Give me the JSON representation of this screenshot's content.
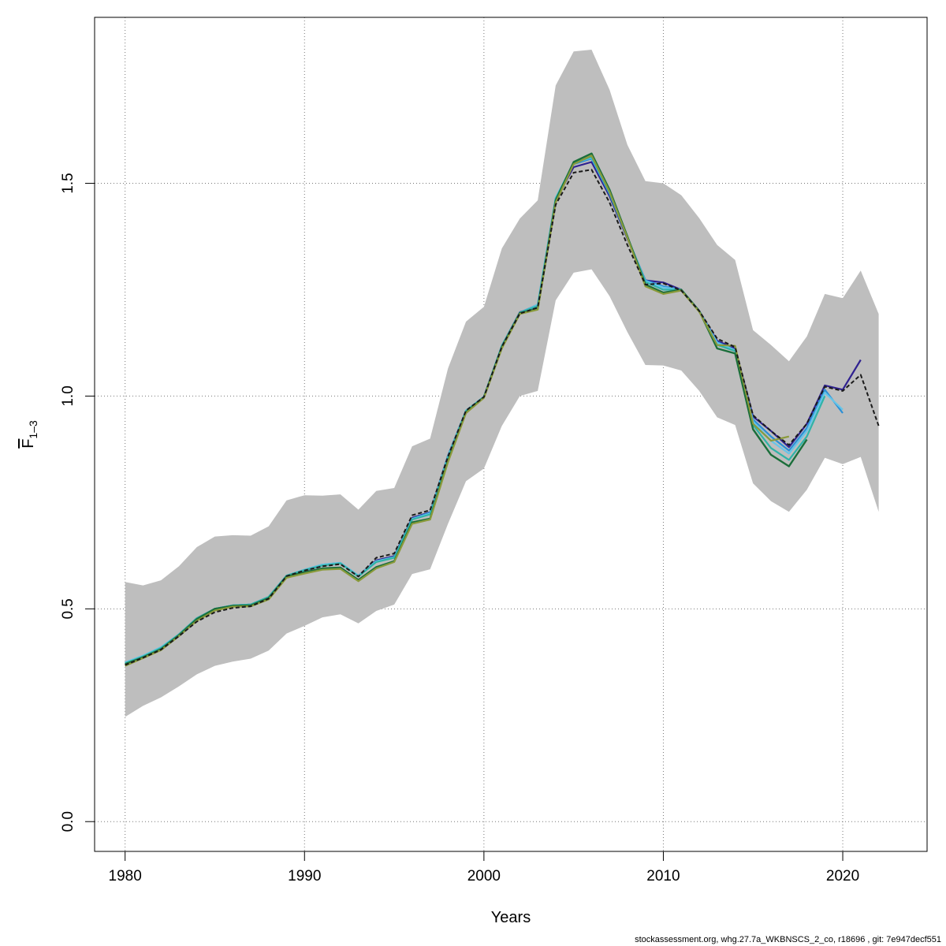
{
  "chart_data": {
    "type": "line",
    "title": "",
    "xlabel": "Years",
    "ylabel_main": "F",
    "ylabel_sub": "1–3",
    "xlim": [
      1978.3,
      2024.7
    ],
    "ylim": [
      -0.07,
      1.89
    ],
    "x_ticks": [
      1980,
      1990,
      2000,
      2010,
      2020
    ],
    "y_ticks": [
      0.0,
      0.5,
      1.0,
      1.5
    ],
    "y_tick_labels": [
      "0.0",
      "0.5",
      "1.0",
      "1.5"
    ],
    "grid": true,
    "band": {
      "fill": "#bebebe",
      "x": [
        1980,
        1981,
        1982,
        1983,
        1984,
        1985,
        1986,
        1987,
        1988,
        1989,
        1990,
        1991,
        1992,
        1993,
        1994,
        1995,
        1996,
        1997,
        1998,
        1999,
        2000,
        2001,
        2002,
        2003,
        2004,
        2005,
        2006,
        2007,
        2008,
        2009,
        2010,
        2011,
        2012,
        2013,
        2014,
        2015,
        2016,
        2017,
        2018,
        2019,
        2020,
        2021,
        2022
      ],
      "lower": [
        0.246,
        0.272,
        0.292,
        0.318,
        0.346,
        0.366,
        0.376,
        0.383,
        0.402,
        0.442,
        0.46,
        0.48,
        0.487,
        0.466,
        0.495,
        0.51,
        0.582,
        0.593,
        0.7,
        0.8,
        0.83,
        0.93,
        1.0,
        1.012,
        1.225,
        1.29,
        1.298,
        1.235,
        1.15,
        1.073,
        1.072,
        1.06,
        1.012,
        0.95,
        0.932,
        0.795,
        0.753,
        0.728,
        0.78,
        0.855,
        0.84,
        0.857,
        0.728
      ],
      "upper": [
        0.563,
        0.555,
        0.567,
        0.6,
        0.645,
        0.67,
        0.673,
        0.672,
        0.694,
        0.755,
        0.767,
        0.766,
        0.769,
        0.733,
        0.777,
        0.784,
        0.882,
        0.9,
        1.065,
        1.175,
        1.21,
        1.347,
        1.417,
        1.46,
        1.73,
        1.81,
        1.814,
        1.72,
        1.59,
        1.505,
        1.5,
        1.472,
        1.418,
        1.355,
        1.32,
        1.155,
        1.12,
        1.082,
        1.14,
        1.24,
        1.23,
        1.295,
        1.193
      ]
    },
    "series": [
      {
        "color": "#2f2190",
        "dash": false,
        "width": 2.2,
        "x": [
          1980,
          1981,
          1982,
          1983,
          1984,
          1985,
          1986,
          1987,
          1988,
          1989,
          1990,
          1991,
          1992,
          1993,
          1994,
          1995,
          1996,
          1997,
          1998,
          1999,
          2000,
          2001,
          2002,
          2003,
          2004,
          2005,
          2006,
          2007,
          2008,
          2009,
          2010,
          2011,
          2012,
          2013,
          2014,
          2015,
          2016,
          2017,
          2018,
          2019,
          2020,
          2021
        ],
        "y": [
          0.372,
          0.388,
          0.407,
          0.44,
          0.478,
          0.5,
          0.508,
          0.51,
          0.528,
          0.578,
          0.59,
          0.602,
          0.607,
          0.578,
          0.614,
          0.624,
          0.714,
          0.727,
          0.86,
          0.965,
          0.998,
          1.118,
          1.197,
          1.21,
          1.462,
          1.538,
          1.55,
          1.47,
          1.37,
          1.272,
          1.267,
          1.25,
          1.2,
          1.13,
          1.112,
          0.952,
          0.918,
          0.88,
          0.935,
          1.025,
          1.015,
          1.085
        ]
      },
      {
        "color": "#2b8fd6",
        "dash": false,
        "width": 2.2,
        "x": [
          1980,
          1981,
          1982,
          1983,
          1984,
          1985,
          1986,
          1987,
          1988,
          1989,
          1990,
          1991,
          1992,
          1993,
          1994,
          1995,
          1996,
          1997,
          1998,
          1999,
          2000,
          2001,
          2002,
          2003,
          2004,
          2005,
          2006,
          2007,
          2008,
          2009,
          2010,
          2011,
          2012,
          2013,
          2014,
          2015,
          2016,
          2017,
          2018,
          2019,
          2020
        ],
        "y": [
          0.373,
          0.389,
          0.408,
          0.44,
          0.478,
          0.5,
          0.508,
          0.51,
          0.528,
          0.578,
          0.592,
          0.604,
          0.608,
          0.578,
          0.612,
          0.622,
          0.712,
          0.726,
          0.86,
          0.966,
          0.998,
          1.118,
          1.196,
          1.215,
          1.465,
          1.545,
          1.558,
          1.475,
          1.372,
          1.272,
          1.258,
          1.25,
          1.2,
          1.127,
          1.108,
          0.945,
          0.905,
          0.872,
          0.925,
          1.015,
          0.96
        ]
      },
      {
        "color": "#66c5e8",
        "dash": false,
        "width": 2.2,
        "x": [
          1980,
          1981,
          1982,
          1983,
          1984,
          1985,
          1986,
          1987,
          1988,
          1989,
          1990,
          1991,
          1992,
          1993,
          1994,
          1995,
          1996,
          1997,
          1998,
          1999,
          2000,
          2001,
          2002,
          2003,
          2004,
          2005,
          2006,
          2007,
          2008,
          2009,
          2010,
          2011,
          2012,
          2013,
          2014,
          2015,
          2016,
          2017,
          2018,
          2019,
          2020
        ],
        "y": [
          0.374,
          0.39,
          0.41,
          0.44,
          0.478,
          0.5,
          0.508,
          0.51,
          0.528,
          0.578,
          0.592,
          0.604,
          0.608,
          0.578,
          0.612,
          0.621,
          0.711,
          0.724,
          0.858,
          0.966,
          0.999,
          1.118,
          1.195,
          1.215,
          1.466,
          1.548,
          1.56,
          1.478,
          1.373,
          1.27,
          1.255,
          1.25,
          1.2,
          1.125,
          1.108,
          0.94,
          0.895,
          0.865,
          0.918,
          1.008,
          0.968
        ]
      },
      {
        "color": "#2fb3a8",
        "dash": false,
        "width": 2.2,
        "x": [
          1980,
          1981,
          1982,
          1983,
          1984,
          1985,
          1986,
          1987,
          1988,
          1989,
          1990,
          1991,
          1992,
          1993,
          1994,
          1995,
          1996,
          1997,
          1998,
          1999,
          2000,
          2001,
          2002,
          2003,
          2004,
          2005,
          2006,
          2007,
          2008,
          2009,
          2010,
          2011,
          2012,
          2013,
          2014,
          2015,
          2016,
          2017,
          2018,
          2019
        ],
        "y": [
          0.372,
          0.388,
          0.408,
          0.44,
          0.478,
          0.5,
          0.508,
          0.51,
          0.528,
          0.578,
          0.591,
          0.602,
          0.607,
          0.576,
          0.61,
          0.62,
          0.71,
          0.722,
          0.856,
          0.965,
          0.998,
          1.118,
          1.196,
          1.212,
          1.464,
          1.548,
          1.562,
          1.478,
          1.373,
          1.268,
          1.25,
          1.25,
          1.2,
          1.12,
          1.106,
          0.932,
          0.878,
          0.85,
          0.905,
          1.0
        ]
      },
      {
        "color": "#1a6e3a",
        "dash": false,
        "width": 2.4,
        "x": [
          1980,
          1981,
          1982,
          1983,
          1984,
          1985,
          1986,
          1987,
          1988,
          1989,
          1990,
          1991,
          1992,
          1993,
          1994,
          1995,
          1996,
          1997,
          1998,
          1999,
          2000,
          2001,
          2002,
          2003,
          2004,
          2005,
          2006,
          2007,
          2008,
          2009,
          2010,
          2011,
          2012,
          2013,
          2014,
          2015,
          2016,
          2017,
          2018
        ],
        "y": [
          0.37,
          0.386,
          0.405,
          0.438,
          0.476,
          0.5,
          0.507,
          0.508,
          0.525,
          0.576,
          0.586,
          0.595,
          0.597,
          0.568,
          0.598,
          0.612,
          0.703,
          0.712,
          0.848,
          0.962,
          0.998,
          1.115,
          1.195,
          1.205,
          1.46,
          1.55,
          1.57,
          1.485,
          1.375,
          1.262,
          1.243,
          1.25,
          1.2,
          1.112,
          1.1,
          0.922,
          0.862,
          0.835,
          0.898
        ]
      },
      {
        "color": "#8a9a3a",
        "dash": false,
        "width": 2.2,
        "x": [
          1980,
          1981,
          1982,
          1983,
          1984,
          1985,
          1986,
          1987,
          1988,
          1989,
          1990,
          1991,
          1992,
          1993,
          1994,
          1995,
          1996,
          1997,
          1998,
          1999,
          2000,
          2001,
          2002,
          2003,
          2004,
          2005,
          2006,
          2007,
          2008,
          2009,
          2010,
          2011,
          2012,
          2013,
          2014,
          2015,
          2016,
          2017
        ],
        "y": [
          0.366,
          0.384,
          0.403,
          0.436,
          0.472,
          0.496,
          0.505,
          0.506,
          0.522,
          0.573,
          0.583,
          0.592,
          0.594,
          0.565,
          0.595,
          0.61,
          0.7,
          0.71,
          0.845,
          0.96,
          0.996,
          1.112,
          1.193,
          1.203,
          1.455,
          1.545,
          1.565,
          1.48,
          1.372,
          1.258,
          1.24,
          1.248,
          1.198,
          1.12,
          1.118,
          0.935,
          0.895,
          0.905
        ]
      },
      {
        "color": "#1a1a1a",
        "dash": true,
        "width": 2.0,
        "x": [
          1980,
          1981,
          1982,
          1983,
          1984,
          1985,
          1986,
          1987,
          1988,
          1989,
          1990,
          1991,
          1992,
          1993,
          1994,
          1995,
          1996,
          1997,
          1998,
          1999,
          2000,
          2001,
          2002,
          2003,
          2004,
          2005,
          2006,
          2007,
          2008,
          2009,
          2010,
          2011,
          2012,
          2013,
          2014,
          2015,
          2016,
          2017,
          2018,
          2019,
          2020,
          2021,
          2022
        ],
        "y": [
          0.368,
          0.385,
          0.404,
          0.436,
          0.47,
          0.492,
          0.502,
          0.506,
          0.524,
          0.577,
          0.59,
          0.6,
          0.605,
          0.576,
          0.62,
          0.63,
          0.72,
          0.732,
          0.858,
          0.966,
          0.998,
          1.116,
          1.194,
          1.208,
          1.45,
          1.525,
          1.532,
          1.455,
          1.355,
          1.262,
          1.265,
          1.248,
          1.2,
          1.135,
          1.115,
          0.955,
          0.918,
          0.885,
          0.935,
          1.022,
          1.012,
          1.05,
          0.93
        ]
      }
    ]
  },
  "footer": "stockassessment.org, whg.27.7a_WKBNSCS_2_co, r18696 , git: 7e947decf551"
}
